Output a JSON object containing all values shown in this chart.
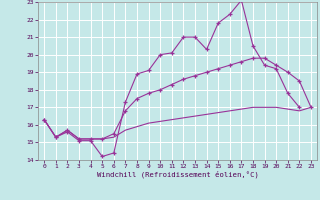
{
  "xlabel": "Windchill (Refroidissement éolien,°C)",
  "xlim": [
    -0.5,
    23.5
  ],
  "ylim": [
    14,
    23
  ],
  "yticks": [
    14,
    15,
    16,
    17,
    18,
    19,
    20,
    21,
    22,
    23
  ],
  "xticks": [
    0,
    1,
    2,
    3,
    4,
    5,
    6,
    7,
    8,
    9,
    10,
    11,
    12,
    13,
    14,
    15,
    16,
    17,
    18,
    19,
    20,
    21,
    22,
    23
  ],
  "bg_color": "#c5e8e8",
  "grid_color": "#ffffff",
  "line_color": "#993399",
  "line1_y": [
    16.3,
    15.3,
    15.6,
    15.1,
    15.1,
    14.2,
    14.4,
    17.3,
    18.9,
    19.1,
    20.0,
    20.1,
    21.0,
    21.0,
    20.3,
    21.8,
    22.3,
    23.1,
    20.5,
    19.4,
    19.2,
    17.8,
    17.0,
    null
  ],
  "line2_y": [
    16.3,
    15.3,
    15.7,
    15.2,
    15.2,
    15.2,
    15.5,
    16.8,
    17.5,
    17.8,
    18.0,
    18.3,
    18.6,
    18.8,
    19.0,
    19.2,
    19.4,
    19.6,
    19.8,
    19.8,
    19.4,
    19.0,
    18.5,
    17.0
  ],
  "line3_y": [
    16.3,
    15.3,
    15.7,
    15.2,
    15.2,
    15.2,
    15.3,
    15.7,
    15.9,
    16.1,
    16.2,
    16.3,
    16.4,
    16.5,
    16.6,
    16.7,
    16.8,
    16.9,
    17.0,
    17.0,
    17.0,
    16.9,
    16.8,
    17.0
  ]
}
